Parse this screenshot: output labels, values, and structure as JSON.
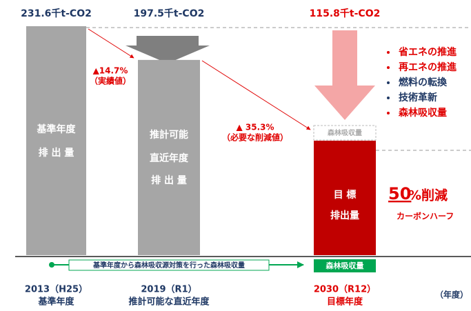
{
  "chart_data": {
    "type": "bar",
    "categories": [
      "2013（H25）",
      "2019（R1）",
      "2030（R12）"
    ],
    "category_sublabels": [
      "基準年度",
      "推計可能な直近年度",
      "目標年度"
    ],
    "values": [
      231.6,
      197.5,
      115.8
    ],
    "value_labels": [
      "231.6千t-CO2",
      "197.5千t-CO2",
      "115.8千t-CO2"
    ],
    "colors": [
      "#a6a6a6",
      "#a6a6a6",
      "#c00000"
    ],
    "bar_labels": [
      [
        "基準年度",
        "排 出 量"
      ],
      [
        "推計可能",
        "直近年度",
        "排 出 量"
      ],
      [
        "目 標",
        "排出量"
      ]
    ],
    "x_axis_label": "（年度）",
    "reductions": [
      {
        "value": "▲14.7%",
        "note": "（実績値）"
      },
      {
        "value": "▲ 35.3%",
        "note": "（必要な削減値）"
      }
    ],
    "forest_label": "森林吸収量",
    "forest_arrow_label": "基準年度から森林吸収源対策を行った森林吸収量",
    "measures": {
      "items": [
        "省エネの推進",
        "再エネの推進",
        "燃料の転換",
        "技術革新",
        "森林吸収量"
      ],
      "colors": [
        "#e00000",
        "#e00000",
        "#1f3864",
        "#1f3864",
        "#e00000"
      ]
    },
    "target": {
      "number": "50",
      "text": "%削減",
      "subtitle": "カーボンハーフ"
    }
  }
}
